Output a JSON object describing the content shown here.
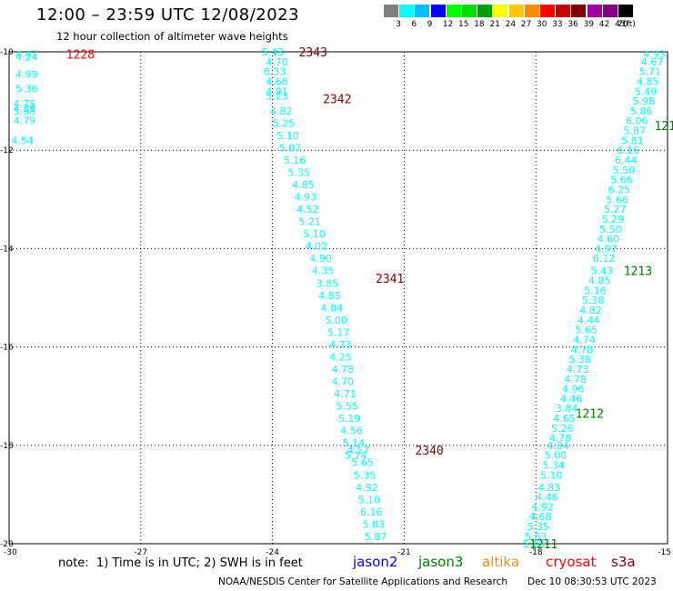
{
  "header": {
    "title": "12:00 – 23:59 UTC 12/08/2023",
    "subtitle": "12 hour collection of altimeter wave heights"
  },
  "scale": {
    "colors": [
      "#808080",
      "#00ffff",
      "#00bfff",
      "#0000ff",
      "#00ff00",
      "#00e000",
      "#00a000",
      "#ffff00",
      "#ffc800",
      "#ff8c00",
      "#ff0000",
      "#c80000",
      "#800000",
      "#a000a0",
      "#800080",
      "#000000"
    ],
    "labels": [
      "3",
      "6",
      "9",
      "12",
      "15",
      "18",
      "21",
      "24",
      "27",
      "30",
      "33",
      "36",
      "39",
      "42",
      "45",
      "70",
      "(ft)"
    ]
  },
  "legend_bar": {
    "note": "note:  1) Time is in UTC; 2) SWH is in feet",
    "satellites": [
      {
        "name": "jason2",
        "color": "#0000ff"
      },
      {
        "name": "jason3",
        "color": "#008000"
      },
      {
        "name": "altika",
        "color": "#ff8c00"
      },
      {
        "name": "cryosat",
        "color": "#ff0000"
      },
      {
        "name": "s3a",
        "color": "#800000"
      }
    ]
  },
  "footer": {
    "left": "NOAA/NESDIS Center for Satellite Applications and Research",
    "right": "Dec 10 08:30:53 UTC 2023"
  },
  "chart_data": {
    "type": "scatter",
    "title": "12:00 – 23:59 UTC 12/08/2023",
    "xlim": [
      -30,
      -15
    ],
    "ylim": [
      -20,
      -10
    ],
    "x_ticks": [
      -30,
      -27,
      -24,
      -21,
      -18,
      -15
    ],
    "y_ticks": [
      -10,
      -12,
      -14,
      -16,
      -18,
      -20
    ],
    "grid": true,
    "value_color": "#00ffff",
    "time_label_colors": {
      "jason3": "#008000",
      "s3a": "#800000",
      "cryosat": "#ff0000"
    },
    "series": [
      {
        "satellite": "cryosat",
        "pass_time": "1228",
        "time_label_at": [
          -28.7,
          -10.05
        ],
        "points": [
          {
            "x": -29.6,
            "y": -10.05,
            "v": "4.47"
          },
          {
            "x": -29.6,
            "y": -10.1,
            "v": "4.24"
          },
          {
            "x": -29.6,
            "y": -10.45,
            "v": "4.99"
          },
          {
            "x": -29.6,
            "y": -10.75,
            "v": "5.36"
          },
          {
            "x": -29.65,
            "y": -11.05,
            "v": "4.75"
          },
          {
            "x": -29.65,
            "y": -11.15,
            "v": "4.39"
          },
          {
            "x": -29.65,
            "y": -11.2,
            "v": "5.58"
          },
          {
            "x": -29.65,
            "y": -11.4,
            "v": "4.79"
          },
          {
            "x": -29.7,
            "y": -11.8,
            "v": "4.54"
          }
        ]
      },
      {
        "satellite": "s3a",
        "pass_time": "2343",
        "time_label_at": [
          -23.4,
          -10.0
        ],
        "points": [
          {
            "x": -24.0,
            "y": -10.0,
            "v": "5.43"
          },
          {
            "x": -23.9,
            "y": -10.2,
            "v": "4.70"
          },
          {
            "x": -23.95,
            "y": -10.4,
            "v": "6.33"
          },
          {
            "x": -23.9,
            "y": -10.6,
            "v": "4.68"
          },
          {
            "x": -23.9,
            "y": -10.8,
            "v": "4.91"
          },
          {
            "x": -23.9,
            "y": -10.9,
            "v": "5.23"
          }
        ]
      },
      {
        "satellite": "s3a",
        "pass_time": "2342",
        "time_label_at": [
          -22.85,
          -10.95
        ],
        "points": [
          {
            "x": -23.8,
            "y": -11.2,
            "v": "4.82"
          },
          {
            "x": -23.75,
            "y": -11.45,
            "v": "5.25"
          },
          {
            "x": -23.65,
            "y": -11.7,
            "v": "5.10"
          },
          {
            "x": -23.6,
            "y": -11.95,
            "v": "5.07"
          },
          {
            "x": -23.5,
            "y": -12.2,
            "v": "5.16"
          },
          {
            "x": -23.4,
            "y": -12.45,
            "v": "5.35"
          },
          {
            "x": -23.3,
            "y": -12.7,
            "v": "4.85"
          },
          {
            "x": -23.25,
            "y": -12.95,
            "v": "4.93"
          },
          {
            "x": -23.2,
            "y": -13.2,
            "v": "4.52"
          },
          {
            "x": -23.15,
            "y": -13.45,
            "v": "5.21"
          },
          {
            "x": -23.05,
            "y": -13.7,
            "v": "5.10"
          },
          {
            "x": -23.0,
            "y": -13.95,
            "v": "4.02"
          },
          {
            "x": -22.9,
            "y": -14.2,
            "v": "4.90"
          },
          {
            "x": -22.85,
            "y": -14.45,
            "v": "4.35"
          }
        ]
      },
      {
        "satellite": "s3a",
        "pass_time": "2341",
        "time_label_at": [
          -21.65,
          -14.6
        ],
        "points": [
          {
            "x": -22.75,
            "y": -14.7,
            "v": "3.85"
          },
          {
            "x": -22.7,
            "y": -14.95,
            "v": "4.85"
          },
          {
            "x": -22.65,
            "y": -15.2,
            "v": "4.84"
          },
          {
            "x": -22.55,
            "y": -15.45,
            "v": "5.00"
          },
          {
            "x": -22.5,
            "y": -15.7,
            "v": "5.17"
          },
          {
            "x": -22.45,
            "y": -15.95,
            "v": "4.73"
          },
          {
            "x": -22.45,
            "y": -16.2,
            "v": "4.25"
          },
          {
            "x": -22.4,
            "y": -16.45,
            "v": "4.78"
          },
          {
            "x": -22.4,
            "y": -16.7,
            "v": "4.70"
          },
          {
            "x": -22.35,
            "y": -16.95,
            "v": "4.71"
          },
          {
            "x": -22.3,
            "y": -17.2,
            "v": "5.55"
          },
          {
            "x": -22.25,
            "y": -17.45,
            "v": "5.19"
          },
          {
            "x": -22.2,
            "y": -17.7,
            "v": "4.56"
          },
          {
            "x": -22.15,
            "y": -17.95,
            "v": "5.14"
          },
          {
            "x": -22.1,
            "y": -18.2,
            "v": "5.74"
          }
        ]
      },
      {
        "satellite": "s3a",
        "pass_time": "2340",
        "time_label_at": [
          -20.75,
          -18.1
        ],
        "points": [
          {
            "x": -22.05,
            "y": -18.1,
            "v": "4.57"
          },
          {
            "x": -21.95,
            "y": -18.35,
            "v": "5.65"
          },
          {
            "x": -21.9,
            "y": -18.6,
            "v": "5.35"
          },
          {
            "x": -21.85,
            "y": -18.85,
            "v": "4.92"
          },
          {
            "x": -21.8,
            "y": -19.1,
            "v": "5.10"
          },
          {
            "x": -21.75,
            "y": -19.35,
            "v": "6.16"
          },
          {
            "x": -21.7,
            "y": -19.6,
            "v": "5.83"
          },
          {
            "x": -21.65,
            "y": -19.85,
            "v": "5.87"
          }
        ]
      },
      {
        "satellite": "jason3",
        "pass_time": "121",
        "time_label_at": [
          -15.3,
          -11.5
        ],
        "points": [
          {
            "x": -15.3,
            "y": -10.05,
            "v": "4.93"
          },
          {
            "x": -15.35,
            "y": -10.2,
            "v": "4.67"
          },
          {
            "x": -15.4,
            "y": -10.4,
            "v": "5.71"
          },
          {
            "x": -15.45,
            "y": -10.6,
            "v": "4.85"
          },
          {
            "x": -15.5,
            "y": -10.8,
            "v": "5.49"
          },
          {
            "x": -15.55,
            "y": -11.0,
            "v": "5.98"
          },
          {
            "x": -15.6,
            "y": -11.2,
            "v": "5.86"
          },
          {
            "x": -15.7,
            "y": -11.4,
            "v": "6.06"
          },
          {
            "x": -15.75,
            "y": -11.6,
            "v": "5.87"
          },
          {
            "x": -15.8,
            "y": -11.8,
            "v": "5.81"
          },
          {
            "x": -15.9,
            "y": -12.0,
            "v": "6.16"
          },
          {
            "x": -15.95,
            "y": -12.2,
            "v": "6.44"
          },
          {
            "x": -16.0,
            "y": -12.4,
            "v": "5.50"
          },
          {
            "x": -16.05,
            "y": -12.6,
            "v": "5.66"
          },
          {
            "x": -16.1,
            "y": -12.8,
            "v": "6.25"
          },
          {
            "x": -16.15,
            "y": -13.0,
            "v": "5.66"
          },
          {
            "x": -16.2,
            "y": -13.2,
            "v": "5.27"
          },
          {
            "x": -16.25,
            "y": -13.4,
            "v": "5.29"
          },
          {
            "x": -16.3,
            "y": -13.6,
            "v": "5.50"
          },
          {
            "x": -16.35,
            "y": -13.8,
            "v": "4.60"
          },
          {
            "x": -16.4,
            "y": -14.0,
            "v": "4.97"
          },
          {
            "x": -16.45,
            "y": -14.2,
            "v": "6.12"
          }
        ]
      },
      {
        "satellite": "jason3",
        "pass_time": "1213",
        "time_label_at": [
          -16.0,
          -14.45
        ],
        "points": [
          {
            "x": -16.5,
            "y": -14.45,
            "v": "5.43"
          },
          {
            "x": -16.55,
            "y": -14.65,
            "v": "4.85"
          },
          {
            "x": -16.65,
            "y": -14.85,
            "v": "5.16"
          },
          {
            "x": -16.7,
            "y": -15.05,
            "v": "5.38"
          },
          {
            "x": -16.75,
            "y": -15.25,
            "v": "4.82"
          },
          {
            "x": -16.8,
            "y": -15.45,
            "v": "4.44"
          },
          {
            "x": -16.85,
            "y": -15.65,
            "v": "5.65"
          },
          {
            "x": -16.9,
            "y": -15.85,
            "v": "4.74"
          },
          {
            "x": -16.95,
            "y": -16.05,
            "v": "4.78"
          },
          {
            "x": -17.0,
            "y": -16.25,
            "v": "5.38"
          },
          {
            "x": -17.05,
            "y": -16.45,
            "v": "4.73"
          },
          {
            "x": -17.1,
            "y": -16.65,
            "v": "4.78"
          },
          {
            "x": -17.15,
            "y": -16.85,
            "v": "4.96"
          },
          {
            "x": -17.2,
            "y": -17.05,
            "v": "4.46"
          }
        ]
      },
      {
        "satellite": "jason3",
        "pass_time": "1212",
        "time_label_at": [
          -17.1,
          -17.35
        ],
        "points": [
          {
            "x": -17.3,
            "y": -17.25,
            "v": "3.84"
          },
          {
            "x": -17.35,
            "y": -17.45,
            "v": "4.65"
          },
          {
            "x": -17.4,
            "y": -17.65,
            "v": "5.26"
          },
          {
            "x": -17.45,
            "y": -17.85,
            "v": "4.78"
          },
          {
            "x": -17.5,
            "y": -18.0,
            "v": "4.84"
          },
          {
            "x": -17.55,
            "y": -18.2,
            "v": "5.00"
          },
          {
            "x": -17.6,
            "y": -18.4,
            "v": "5.34"
          },
          {
            "x": -17.65,
            "y": -18.6,
            "v": "5.10"
          },
          {
            "x": -17.7,
            "y": -18.85,
            "v": "4.83"
          },
          {
            "x": -17.75,
            "y": -19.05,
            "v": "4.46"
          },
          {
            "x": -17.85,
            "y": -19.25,
            "v": "4.92"
          },
          {
            "x": -17.9,
            "y": -19.45,
            "v": "4.68"
          },
          {
            "x": -17.95,
            "y": -19.65,
            "v": "5.35"
          },
          {
            "x": -18.0,
            "y": -19.85,
            "v": "5.63"
          },
          {
            "x": -18.05,
            "y": -20.0,
            "v": "5.16"
          }
        ]
      },
      {
        "satellite": "jason3",
        "pass_time": "1211",
        "time_label_at": [
          -18.15,
          -20.0
        ],
        "points": []
      }
    ]
  }
}
